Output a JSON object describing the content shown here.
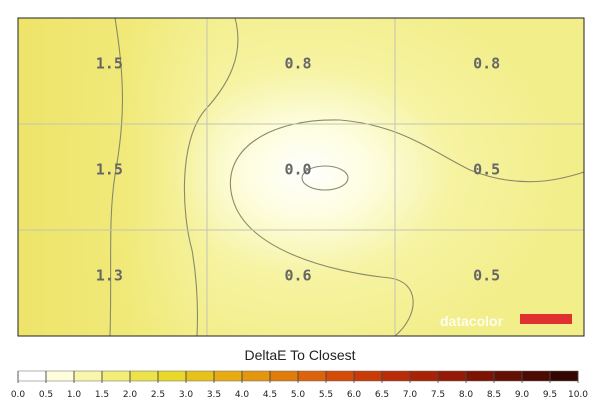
{
  "chart_data": {
    "type": "heatmap",
    "rows": 3,
    "cols": 3,
    "values": [
      [
        1.5,
        0.8,
        0.8
      ],
      [
        1.5,
        0.0,
        0.5
      ],
      [
        1.3,
        0.6,
        0.5
      ]
    ],
    "cell_labels": [
      [
        "1.5",
        "0.8",
        "0.8"
      ],
      [
        "1.5",
        "0.0",
        "0.5"
      ],
      [
        "1.3",
        "0.6",
        "0.5"
      ]
    ],
    "watermark": "datacolor",
    "scale": {
      "title": "DeltaE To Closest",
      "min": 0,
      "max": 10,
      "ticks": [
        "0.0",
        "0.5",
        "1.0",
        "1.5",
        "2.0",
        "2.5",
        "3.0",
        "3.5",
        "4.0",
        "4.5",
        "5.0",
        "5.5",
        "6.0",
        "6.5",
        "7.0",
        "7.5",
        "8.0",
        "8.5",
        "9.0",
        "9.5",
        "10.0"
      ],
      "colors": [
        "#ffffff",
        "#fefedc",
        "#f9f6ac",
        "#f3ee78",
        "#ece24a",
        "#e8d82a",
        "#e8c21a",
        "#e8ac12",
        "#e4960e",
        "#e07c0c",
        "#dc620c",
        "#d44c0a",
        "#c83a08",
        "#b82c08",
        "#a82206",
        "#941a06",
        "#7c1404",
        "#641004",
        "#4c0a02",
        "#340602",
        "#1a0000"
      ]
    }
  }
}
